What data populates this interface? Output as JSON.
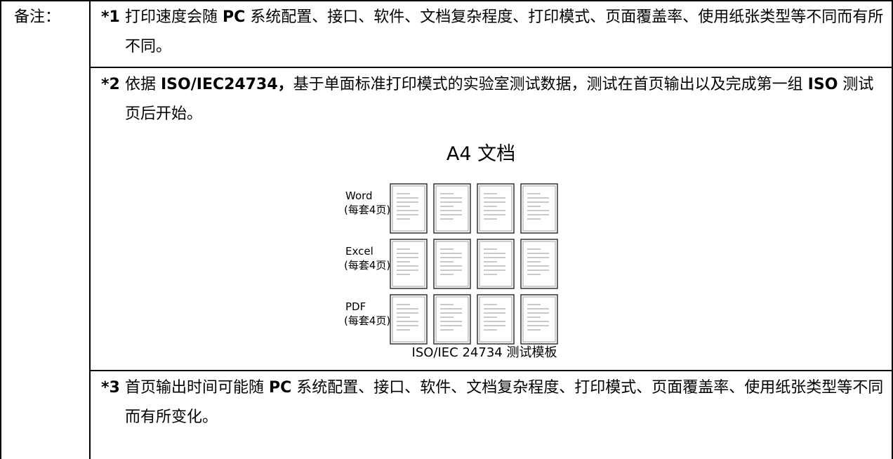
{
  "label": "备注：",
  "notes": [
    {
      "marker": "*1",
      "runs": [
        {
          "text": "打印速度会随 ",
          "bold": false
        },
        {
          "text": "PC",
          "bold": true
        },
        {
          "text": " 系统配置、接口、软件、文档复杂程度、打印模式、页面覆盖率、使用纸张类型等不同而有所不同。",
          "bold": false
        }
      ]
    },
    {
      "marker": "*2",
      "runs": [
        {
          "text": "依据 ",
          "bold": false
        },
        {
          "text": "ISO/IEC24734，",
          "bold": true
        },
        {
          "text": "基于单面标准打印模式的实验室测试数据，测试在首页输出以及完成第一组 ",
          "bold": false
        },
        {
          "text": "ISO",
          "bold": true
        },
        {
          "text": " 测试页后开始。",
          "bold": false
        }
      ]
    },
    {
      "marker": "*3",
      "runs": [
        {
          "text": "首页输出时间可能随 ",
          "bold": false
        },
        {
          "text": "PC",
          "bold": true
        },
        {
          "text": " 系统配置、接口、软件、文档复杂程度、打印模式、页面覆盖率、使用纸张类型等不同而有所变化。",
          "bold": false
        }
      ]
    }
  ],
  "figure": {
    "title": "A4 文档",
    "rows": [
      {
        "name": "Word",
        "count_label": "(每套4页)"
      },
      {
        "name": "Excel",
        "count_label": "(每套4页)"
      },
      {
        "name": "PDF",
        "count_label": "(每套4页)"
      }
    ],
    "caption": "ISO/IEC 24734 测试模板"
  }
}
